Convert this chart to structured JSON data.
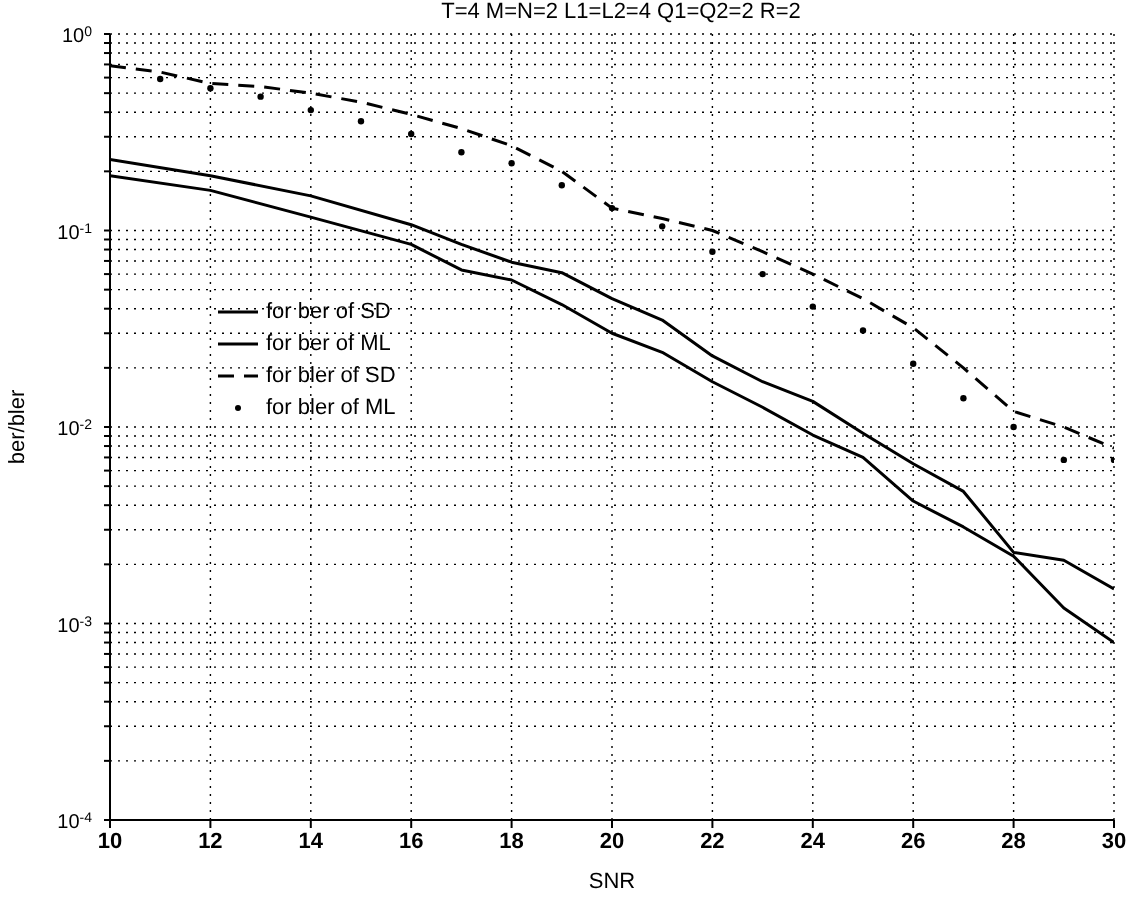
{
  "chart_data": {
    "type": "line",
    "title": "T=4 M=N=2 L1=L2=4 Q1=Q2=2 R=2",
    "xlabel": "SNR",
    "ylabel": "ber/bler",
    "x": [
      10,
      11,
      12,
      13,
      14,
      15,
      16,
      17,
      18,
      19,
      20,
      21,
      22,
      23,
      24,
      25,
      26,
      27,
      28,
      29,
      30
    ],
    "series": [
      {
        "name": "for ber of SD",
        "color": "#000000",
        "line_style": "solid",
        "marker": "none",
        "x": [
          10,
          12,
          14,
          16,
          17,
          18,
          19,
          20,
          21,
          22,
          23,
          24,
          25,
          26,
          27,
          28,
          29,
          30
        ],
        "values": [
          0.23,
          0.19,
          0.15,
          0.107,
          0.085,
          0.069,
          0.061,
          0.045,
          0.035,
          0.023,
          0.017,
          0.0135,
          0.0093,
          0.0065,
          0.0047,
          0.0023,
          0.0021,
          0.0015
        ]
      },
      {
        "name": "for ber of ML",
        "color": "#000000",
        "line_style": "solid",
        "marker": "none",
        "x": [
          10,
          12,
          14,
          16,
          17,
          18,
          19,
          20,
          21,
          22,
          23,
          24,
          25,
          26,
          27,
          28,
          29,
          30
        ],
        "values": [
          0.19,
          0.16,
          0.117,
          0.085,
          0.063,
          0.056,
          0.042,
          0.03,
          0.024,
          0.017,
          0.0126,
          0.0091,
          0.007,
          0.0042,
          0.0031,
          0.0022,
          0.0012,
          0.0008
        ]
      },
      {
        "name": "for bler of SD",
        "color": "#000000",
        "line_style": "dashed",
        "marker": "none",
        "values": [
          0.69,
          0.64,
          0.56,
          0.54,
          0.5,
          0.45,
          0.39,
          0.33,
          0.27,
          0.2,
          0.13,
          0.115,
          0.1,
          0.078,
          0.06,
          0.045,
          0.032,
          0.02,
          0.012,
          0.01,
          0.0078
        ]
      },
      {
        "name": "for bler of ML",
        "type": "scatter",
        "color": "#000000",
        "marker": "circle",
        "x": [
          11,
          12,
          13,
          14,
          15,
          16,
          17,
          18,
          19,
          20,
          21,
          22,
          23,
          24,
          25,
          26,
          27,
          28,
          29,
          30
        ],
        "values": [
          0.59,
          0.53,
          0.48,
          0.41,
          0.36,
          0.31,
          0.25,
          0.22,
          0.17,
          0.13,
          0.105,
          0.078,
          0.06,
          0.041,
          0.031,
          0.021,
          0.014,
          0.01,
          0.0068,
          0.0068
        ]
      }
    ],
    "xlim": [
      10,
      30
    ],
    "xticks": [
      10,
      12,
      14,
      16,
      18,
      20,
      22,
      24,
      26,
      28,
      30
    ],
    "ylim": [
      0.0001,
      1
    ],
    "log": true,
    "yticks": [
      {
        "value": 0.0001,
        "label": "10$^{-4}$"
      },
      {
        "value": 0.0002,
        "label": null
      },
      {
        "value": 0.0003,
        "label": null
      },
      {
        "value": 0.0004,
        "label": null
      },
      {
        "value": 0.0005,
        "label": null
      },
      {
        "value": 0.0006,
        "label": null
      },
      {
        "value": 0.0007,
        "label": null
      },
      {
        "value": 0.0008,
        "label": null
      },
      {
        "value": 0.0009,
        "label": null
      },
      {
        "value": 0.001,
        "label": "10$^{-3}$"
      },
      {
        "value": 0.002,
        "label": null
      },
      {
        "value": 0.003,
        "label": null
      },
      {
        "value": 0.004,
        "label": null
      },
      {
        "value": 0.005,
        "label": null
      },
      {
        "value": 0.006,
        "label": null
      },
      {
        "value": 0.007,
        "label": null
      },
      {
        "value": 0.008,
        "label": null
      },
      {
        "value": 0.009,
        "label": null
      },
      {
        "value": 0.01,
        "label": "10$^{-2}$"
      },
      {
        "value": 0.02,
        "label": null
      },
      {
        "value": 0.03,
        "label": null
      },
      {
        "value": 0.04,
        "label": null
      },
      {
        "value": 0.05,
        "label": null
      },
      {
        "value": 0.06,
        "label": null
      },
      {
        "value": 0.07,
        "label": null
      },
      {
        "value": 0.08,
        "label": null
      },
      {
        "value": 0.09,
        "label": null
      },
      {
        "value": 0.1,
        "label": "10$^{-1}$"
      },
      {
        "value": 0.2,
        "label": null
      },
      {
        "value": 0.3,
        "label": null
      },
      {
        "value": 0.4,
        "label": null
      },
      {
        "value": 0.5,
        "label": null
      },
      {
        "value": 0.6,
        "label": null
      },
      {
        "value": 0.7,
        "label": null
      },
      {
        "value": 0.8,
        "label": null
      },
      {
        "value": 0.9,
        "label": null
      },
      {
        "value": 1,
        "label": "10$^{0}$"
      }
    ],
    "grid": true,
    "legend": "center left"
  }
}
